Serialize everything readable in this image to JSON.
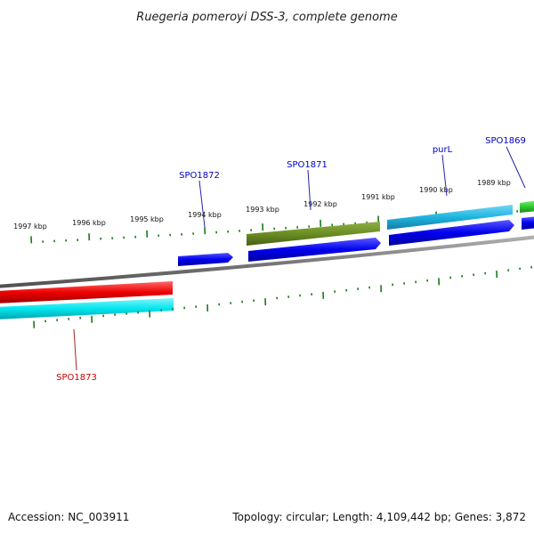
{
  "title": "Ruegeria pomeroyi DSS-3, complete genome",
  "footer": {
    "accession": "Accession: NC_003911",
    "summary": "Topology: circular; Length: 4,109,442 bp; Genes: 3,872"
  },
  "ticks": [
    "1997 kbp",
    "1996 kbp",
    "1995 kbp",
    "1994 kbp",
    "1993 kbp",
    "1992 kbp",
    "1991 kbp",
    "1990 kbp",
    "1989 kbp"
  ],
  "gene_labels": [
    {
      "name": "SPO1872",
      "color": "#0000c0"
    },
    {
      "name": "SPO1871",
      "color": "#0000c0"
    },
    {
      "name": "purL",
      "color": "#0000c0"
    },
    {
      "name": "SPO1869",
      "color": "#0000c0"
    },
    {
      "name": "SPO1873",
      "color": "#cc0000"
    }
  ],
  "colors": {
    "backbone": "#808080",
    "cds_forward": "#0000ee",
    "cds_reverse": "#ee0000",
    "cog_olive": "#6b8e23",
    "cog_cyan": "#1fb5e0",
    "cog_aqua": "#00e5ee",
    "cog_green": "#2ecc2e",
    "tick": "#1a7a1a"
  }
}
